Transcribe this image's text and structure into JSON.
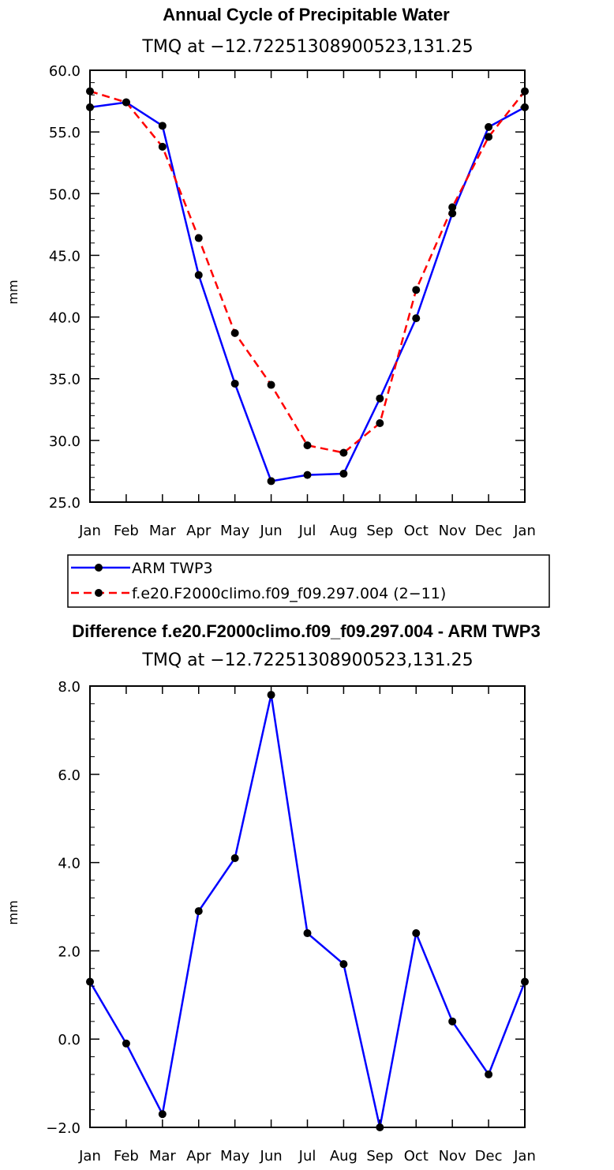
{
  "chart_data": [
    {
      "type": "line",
      "title": "Annual Cycle of Precipitable Water",
      "subtitle": "TMQ at −12.72251308900523,131.25",
      "xlabel": "",
      "ylabel": "mm",
      "categories": [
        "Jan",
        "Feb",
        "Mar",
        "Apr",
        "May",
        "Jun",
        "Jul",
        "Aug",
        "Sep",
        "Oct",
        "Nov",
        "Dec",
        "Jan"
      ],
      "ylim": [
        25.0,
        60.0
      ],
      "yticks": [
        "25.0",
        "30.0",
        "35.0",
        "40.0",
        "45.0",
        "50.0",
        "55.0",
        "60.0"
      ],
      "series": [
        {
          "name": "ARM TWP3",
          "color": "#0000ff",
          "dash": "solid",
          "values": [
            57.0,
            57.4,
            55.5,
            43.4,
            34.6,
            26.7,
            27.2,
            27.3,
            33.4,
            39.9,
            48.4,
            55.4,
            57.0
          ]
        },
        {
          "name": "f.e20.F2000climo.f09_f09.297.004 (2−11)",
          "color": "#ff0000",
          "dash": "dashed",
          "values": [
            58.3,
            57.4,
            53.8,
            46.4,
            38.7,
            34.5,
            29.6,
            29.0,
            31.4,
            42.2,
            48.9,
            54.6,
            58.3
          ]
        }
      ],
      "legend": "below"
    },
    {
      "type": "line",
      "title": "Difference f.e20.F2000climo.f09_f09.297.004 - ARM TWP3",
      "subtitle": "TMQ at −12.72251308900523,131.25",
      "xlabel": "",
      "ylabel": "mm",
      "categories": [
        "Jan",
        "Feb",
        "Mar",
        "Apr",
        "May",
        "Jun",
        "Jul",
        "Aug",
        "Sep",
        "Oct",
        "Nov",
        "Dec",
        "Jan"
      ],
      "ylim": [
        -2.0,
        8.0
      ],
      "yticks": [
        "−2.0",
        "0.0",
        "2.0",
        "4.0",
        "6.0",
        "8.0"
      ],
      "series": [
        {
          "name": "Difference",
          "color": "#0000ff",
          "dash": "solid",
          "values": [
            1.3,
            -0.1,
            -1.7,
            2.9,
            4.1,
            7.8,
            2.4,
            1.7,
            -2.0,
            2.4,
            0.4,
            -0.8,
            1.3
          ]
        }
      ]
    }
  ]
}
